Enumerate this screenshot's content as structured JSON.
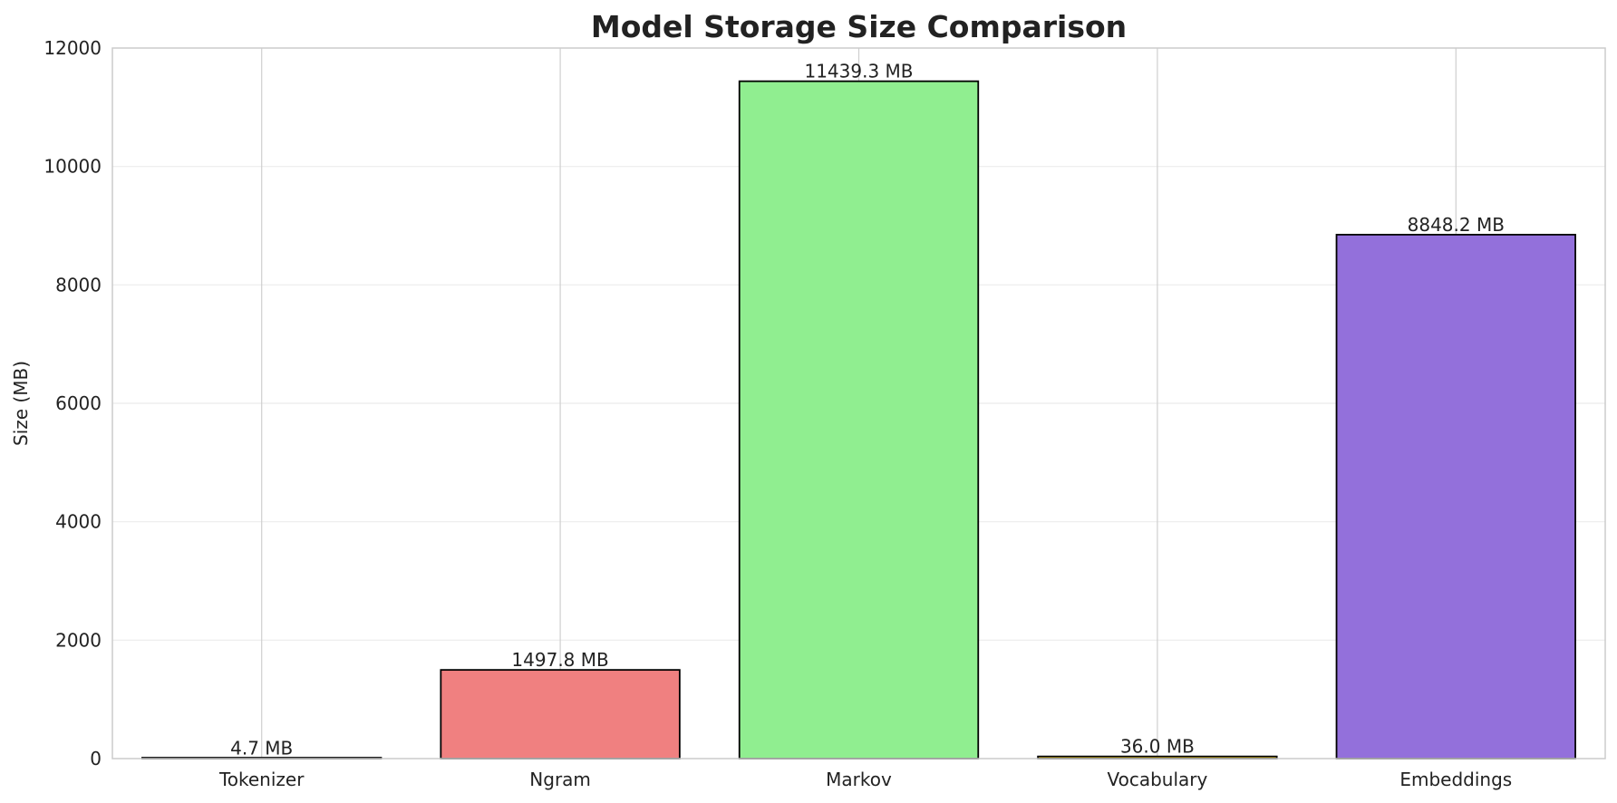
{
  "chart_data": {
    "type": "bar",
    "title": "Model Storage Size Comparison",
    "xlabel": "",
    "ylabel": "Size (MB)",
    "ylim": [
      0,
      12000
    ],
    "yticks": [
      0,
      2000,
      4000,
      6000,
      8000,
      10000,
      12000
    ],
    "categories": [
      "Tokenizer",
      "Ngram",
      "Markov",
      "Vocabulary",
      "Embeddings"
    ],
    "values": [
      4.7,
      1497.8,
      11439.3,
      36.0,
      8848.2
    ],
    "data_labels": [
      "4.7 MB",
      "1497.8 MB",
      "11439.3 MB",
      "36.0 MB",
      "8848.2 MB"
    ],
    "colors": [
      "#87ceeb",
      "#f08080",
      "#90ee90",
      "#ffd700",
      "#9370db"
    ],
    "grid": true,
    "legend": "none"
  }
}
